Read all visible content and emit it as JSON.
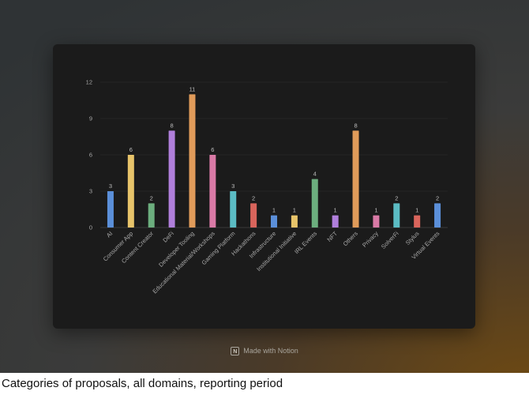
{
  "caption": "Categories of proposals, all domains, reporting period",
  "footer": {
    "badge_text": "Made with Notion",
    "icon": "notion-logo-icon",
    "icon_glyph": "N"
  },
  "chart_data": {
    "type": "bar",
    "categories": [
      "AI",
      "Consumer App",
      "Content Creator",
      "DeFi",
      "Developer Tooling",
      "Educational Material/Workshops",
      "Gaming Platform",
      "Hackathons",
      "Infrastructure",
      "Institutional Initiative",
      "IRL Events",
      "NFT",
      "Others",
      "Privacy",
      "SolverFi",
      "Stylus",
      "Virtual Events"
    ],
    "values": [
      3,
      6,
      2,
      8,
      11,
      6,
      3,
      2,
      1,
      1,
      4,
      1,
      8,
      1,
      2,
      1,
      2
    ],
    "colors": [
      "#5b8fd9",
      "#e8c46a",
      "#6cae7e",
      "#b07fdb",
      "#e09b5a",
      "#d97aa6",
      "#5bbcc4",
      "#d9655c",
      "#5b8fd9",
      "#e8c46a",
      "#6cae7e",
      "#b07fdb",
      "#e09b5a",
      "#d97aa6",
      "#5bbcc4",
      "#d9655c",
      "#5b8fd9"
    ],
    "ylim": [
      0,
      12
    ],
    "yticks": [
      0,
      3,
      6,
      9,
      12
    ],
    "grid": true,
    "data_labels": true,
    "legend": "none"
  }
}
